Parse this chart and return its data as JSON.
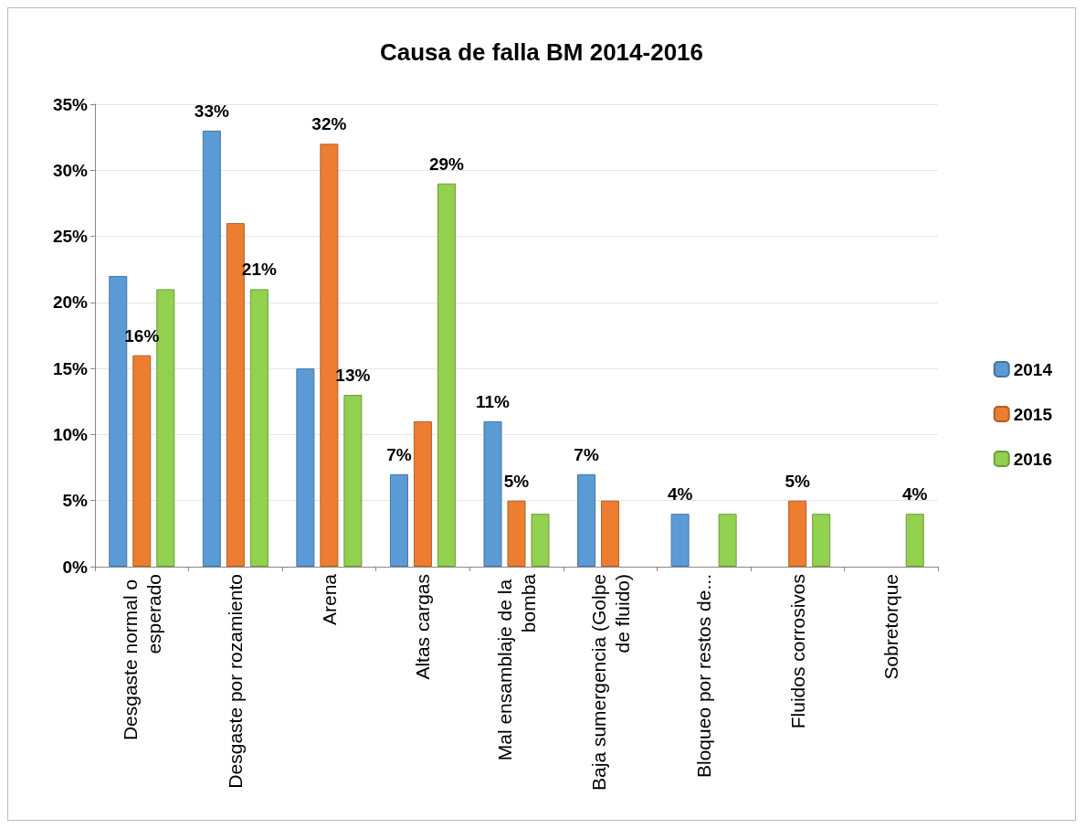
{
  "chart_data": {
    "type": "bar",
    "title": "Causa de falla BM 2014-2016",
    "categories": [
      "Desgaste normal o esperado",
      "Desgaste por rozamiento",
      "Arena",
      "Altas cargas",
      "Mal ensamblaje de la bomba",
      "Baja sumergencia (Golpe de fluido)",
      "Bloqueo por restos de...",
      "Fluidos corrosivos",
      "Sobretorque"
    ],
    "series": [
      {
        "name": "2014",
        "color": "#5b9bd5",
        "values": [
          22,
          33,
          15,
          7,
          11,
          7,
          4,
          null,
          null
        ],
        "value_labels": [
          null,
          "33%",
          null,
          "7%",
          "11%",
          "7%",
          "4%",
          null,
          null
        ]
      },
      {
        "name": "2015",
        "color": "#ed7d31",
        "values": [
          16,
          26,
          32,
          11,
          5,
          5,
          null,
          5,
          null
        ],
        "value_labels": [
          "16%",
          null,
          "32%",
          null,
          "5%",
          null,
          null,
          "5%",
          null
        ]
      },
      {
        "name": "2016",
        "color": "#92d050",
        "values": [
          21,
          21,
          13,
          29,
          4,
          null,
          4,
          4,
          4
        ],
        "value_labels": [
          null,
          "21%",
          "13%",
          "29%",
          null,
          null,
          null,
          null,
          "4%"
        ]
      }
    ],
    "ylim": [
      0,
      35
    ],
    "yticks": [
      {
        "value": 0,
        "label": "0%"
      },
      {
        "value": 5,
        "label": "5%"
      },
      {
        "value": 10,
        "label": "10%"
      },
      {
        "value": 15,
        "label": "15%"
      },
      {
        "value": 20,
        "label": "20%"
      },
      {
        "value": 25,
        "label": "25%"
      },
      {
        "value": 30,
        "label": "30%"
      },
      {
        "value": 35,
        "label": "35%"
      }
    ],
    "grid": "y",
    "legend": "right"
  }
}
